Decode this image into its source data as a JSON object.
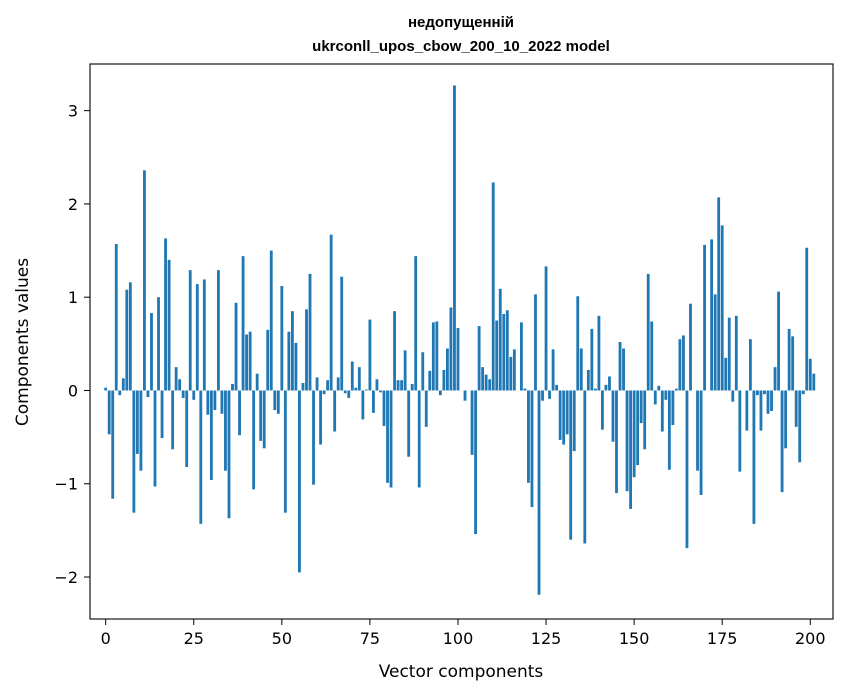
{
  "chart_data": {
    "type": "bar",
    "title_line1": "недопущенній",
    "title_line2": "ukrconll_upos_cbow_200_10_2022 model",
    "xlabel": "Vector components",
    "ylabel": "Components values",
    "xlim": [
      -4.45,
      206.45
    ],
    "ylim": [
      -2.45,
      3.5
    ],
    "xticks": [
      0,
      25,
      50,
      75,
      100,
      125,
      150,
      175,
      200
    ],
    "yticks": [
      -2,
      -1,
      0,
      1,
      2,
      3
    ],
    "ytick_labels": [
      "−2",
      "−1",
      "0",
      "1",
      "2",
      "3"
    ],
    "xtick_labels": [
      "0",
      "25",
      "50",
      "75",
      "100",
      "125",
      "150",
      "175",
      "200"
    ],
    "bar_color": "#1f77b4",
    "grid": false,
    "values": [
      0.03,
      -0.47,
      -1.16,
      1.57,
      -0.05,
      0.13,
      1.08,
      1.16,
      -1.31,
      -0.68,
      -0.86,
      2.36,
      -0.07,
      0.83,
      -1.03,
      1.0,
      -0.51,
      1.63,
      1.4,
      -0.63,
      0.25,
      0.12,
      -0.08,
      -0.82,
      1.29,
      -0.1,
      1.14,
      -1.43,
      1.19,
      -0.26,
      -0.96,
      -0.21,
      1.29,
      -0.25,
      -0.86,
      -1.37,
      0.07,
      0.94,
      -0.48,
      1.44,
      0.6,
      0.63,
      -1.06,
      0.18,
      -0.54,
      -0.62,
      0.65,
      1.5,
      -0.21,
      -0.25,
      1.12,
      -1.31,
      0.63,
      0.85,
      0.51,
      -1.95,
      0.08,
      0.87,
      1.25,
      -1.01,
      0.14,
      -0.58,
      -0.04,
      0.11,
      1.67,
      -0.44,
      0.14,
      1.22,
      -0.03,
      -0.08,
      0.31,
      0.03,
      0.25,
      -0.31,
      0.01,
      0.76,
      -0.24,
      0.12,
      -0.02,
      -0.38,
      -0.99,
      -1.04,
      0.85,
      0.11,
      0.11,
      0.43,
      -0.71,
      0.07,
      1.44,
      -1.04,
      0.41,
      -0.39,
      0.21,
      0.73,
      0.74,
      -0.05,
      0.22,
      0.45,
      0.89,
      3.27,
      0.67,
      0.0,
      -0.11,
      0.0,
      -0.69,
      -1.54,
      0.69,
      0.25,
      0.17,
      0.12,
      2.23,
      0.75,
      1.09,
      0.82,
      0.86,
      0.36,
      0.44,
      0.0,
      0.73,
      0.02,
      -0.99,
      -1.25,
      1.03,
      -2.19,
      -0.11,
      1.33,
      -0.09,
      0.44,
      0.06,
      -0.53,
      -0.58,
      -0.47,
      -1.6,
      -0.65,
      1.01,
      0.45,
      -1.64,
      0.22,
      0.66,
      0.02,
      0.8,
      -0.42,
      0.06,
      0.15,
      -0.55,
      -1.1,
      0.52,
      0.45,
      -1.08,
      -1.27,
      -0.93,
      -0.8,
      -0.35,
      -0.63,
      1.25,
      0.74,
      -0.15,
      0.05,
      -0.44,
      -0.1,
      -0.85,
      -0.37,
      0.02,
      0.55,
      0.59,
      -1.69,
      0.93,
      0.0,
      -0.86,
      -1.12,
      1.56,
      0.0,
      1.62,
      1.03,
      2.07,
      1.77,
      0.35,
      0.78,
      -0.12,
      0.8,
      -0.87,
      0.0,
      -0.43,
      0.55,
      -1.43,
      -0.05,
      -0.43,
      -0.04,
      -0.25,
      -0.22,
      0.25,
      1.06,
      -1.09,
      -0.62,
      0.66,
      0.58,
      -0.39,
      -0.77,
      -0.04,
      1.53,
      0.34,
      0.18
    ]
  }
}
